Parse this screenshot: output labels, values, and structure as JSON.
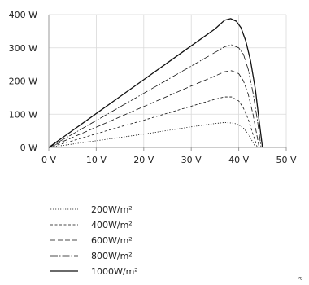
{
  "chart_data": {
    "type": "line",
    "xlabel": "",
    "ylabel": "",
    "xlim": [
      0,
      50
    ],
    "ylim": [
      0,
      400
    ],
    "grid": true,
    "legend_placement": "bottom-left",
    "x_ticks": [
      0,
      10,
      20,
      30,
      40,
      50
    ],
    "y_ticks": [
      0,
      100,
      200,
      300,
      400
    ],
    "x_tick_labels": [
      "0 V",
      "10 V",
      "20 V",
      "30 V",
      "40 V",
      "50 V"
    ],
    "y_tick_labels": [
      "0 W",
      "100 W",
      "200 W",
      "300 W",
      "400 W"
    ],
    "series": [
      {
        "name": "200W/m²",
        "dash": "1.2 1.8",
        "width": 0.8,
        "points": [
          [
            0,
            0
          ],
          [
            5,
            10
          ],
          [
            10,
            20
          ],
          [
            15,
            30
          ],
          [
            20,
            40
          ],
          [
            25,
            51
          ],
          [
            30,
            62
          ],
          [
            35,
            72
          ],
          [
            37,
            75
          ],
          [
            39,
            73
          ],
          [
            40,
            68
          ],
          [
            41,
            58
          ],
          [
            42,
            40
          ],
          [
            43,
            15
          ],
          [
            43.5,
            0
          ]
        ]
      },
      {
        "name": "400W/m²",
        "dash": "3 2.5",
        "width": 0.8,
        "points": [
          [
            0,
            0
          ],
          [
            5,
            20
          ],
          [
            10,
            41
          ],
          [
            15,
            62
          ],
          [
            20,
            82
          ],
          [
            25,
            103
          ],
          [
            30,
            124
          ],
          [
            35,
            145
          ],
          [
            37,
            152
          ],
          [
            38.5,
            152
          ],
          [
            40,
            140
          ],
          [
            41,
            118
          ],
          [
            42,
            85
          ],
          [
            43,
            40
          ],
          [
            43.9,
            0
          ]
        ]
      },
      {
        "name": "600W/m²",
        "dash": "6 3",
        "width": 0.8,
        "points": [
          [
            0,
            0
          ],
          [
            5,
            30
          ],
          [
            10,
            61
          ],
          [
            15,
            92
          ],
          [
            20,
            123
          ],
          [
            25,
            154
          ],
          [
            30,
            185
          ],
          [
            35,
            215
          ],
          [
            37,
            228
          ],
          [
            38.5,
            231
          ],
          [
            40,
            222
          ],
          [
            41,
            200
          ],
          [
            42,
            160
          ],
          [
            43,
            100
          ],
          [
            44.3,
            0
          ]
        ]
      },
      {
        "name": "800W/m²",
        "dash": "9 2 1.5 2",
        "width": 0.8,
        "points": [
          [
            0,
            0
          ],
          [
            5,
            40
          ],
          [
            10,
            81
          ],
          [
            15,
            122
          ],
          [
            20,
            163
          ],
          [
            25,
            204
          ],
          [
            30,
            245
          ],
          [
            35,
            286
          ],
          [
            37,
            303
          ],
          [
            38.5,
            309
          ],
          [
            40,
            300
          ],
          [
            41,
            280
          ],
          [
            42,
            235
          ],
          [
            43,
            165
          ],
          [
            44,
            75
          ],
          [
            44.7,
            0
          ]
        ]
      },
      {
        "name": "1000W/m²",
        "dash": "",
        "width": 1.3,
        "points": [
          [
            0,
            0
          ],
          [
            5,
            51
          ],
          [
            10,
            102
          ],
          [
            15,
            153
          ],
          [
            20,
            204
          ],
          [
            25,
            255
          ],
          [
            30,
            306
          ],
          [
            35,
            357
          ],
          [
            37,
            383
          ],
          [
            38.3,
            388
          ],
          [
            39.5,
            380
          ],
          [
            40.5,
            360
          ],
          [
            41.5,
            320
          ],
          [
            42.5,
            260
          ],
          [
            43.5,
            175
          ],
          [
            44.3,
            80
          ],
          [
            45,
            0
          ]
        ]
      }
    ]
  },
  "legend": {
    "entries": [
      "200W/m²",
      "400W/m²",
      "600W/m²",
      "800W/m²",
      "1000W/m²"
    ]
  },
  "corner_mark": "∂"
}
